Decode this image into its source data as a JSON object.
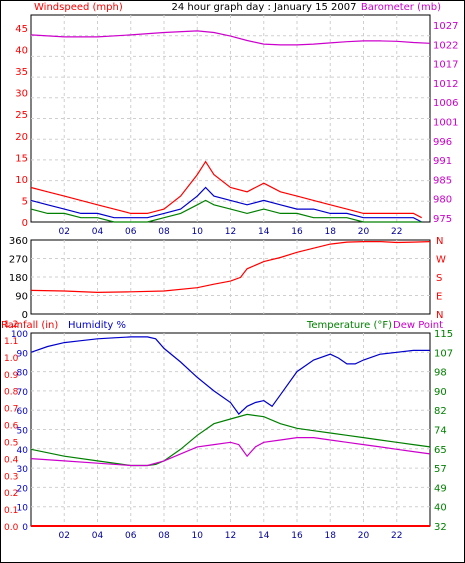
{
  "title": "24 hour graph day : January 15 2007",
  "colors": {
    "frame": "#000000",
    "grid": "#cfcfcf",
    "wind_gust": "#ff0000",
    "wind_avg": "#0000cc",
    "wind_low": "#008000",
    "barometer": "#cc00cc",
    "direction": "#ff0000",
    "humidity": "#0000cc",
    "temperature": "#008000",
    "dew_point": "#cc00cc",
    "rainfall": "#ff0000",
    "x_ticks": "#000099"
  },
  "x_ticks": [
    "02",
    "04",
    "06",
    "08",
    "10",
    "12",
    "14",
    "16",
    "18",
    "20",
    "22"
  ],
  "chart_data": [
    {
      "type": "line",
      "labels": {
        "left": "Windspeed (mph)",
        "right": "Barometer (mb)"
      },
      "x_range": [
        0,
        24
      ],
      "y_left_ticks": [
        "0",
        "5",
        "10",
        "15",
        "20",
        "25",
        "30",
        "35",
        "40",
        "45"
      ],
      "y_left_range": [
        0,
        48
      ],
      "y_right_ticks": [
        "975",
        "980",
        "985",
        "991",
        "996",
        "1001",
        "1006",
        "1012",
        "1017",
        "1022",
        "1027"
      ],
      "y_right_range": [
        975,
        1027
      ],
      "series": [
        {
          "key": "wind_gust",
          "axis": "left",
          "x": [
            0,
            1,
            2,
            3,
            4,
            5,
            6,
            7,
            8,
            9,
            10,
            10.5,
            11,
            12,
            13,
            14,
            15,
            16,
            17,
            18,
            19,
            20,
            21,
            22,
            23,
            23.5
          ],
          "y": [
            8,
            7,
            6,
            5,
            4,
            3,
            2,
            2,
            3,
            6,
            11,
            14,
            11,
            8,
            7,
            9,
            7,
            6,
            5,
            4,
            3,
            2,
            2,
            2,
            2,
            1
          ]
        },
        {
          "key": "wind_avg",
          "axis": "left",
          "x": [
            0,
            1,
            2,
            3,
            4,
            5,
            6,
            7,
            8,
            9,
            10,
            10.5,
            11,
            12,
            13,
            14,
            15,
            16,
            17,
            18,
            19,
            20,
            21,
            22,
            23,
            23.5
          ],
          "y": [
            5,
            4,
            3,
            2,
            2,
            1,
            1,
            1,
            2,
            3,
            6,
            8,
            6,
            5,
            4,
            5,
            4,
            3,
            3,
            2,
            2,
            1,
            1,
            1,
            1,
            0
          ]
        },
        {
          "key": "wind_low",
          "axis": "left",
          "x": [
            0,
            1,
            2,
            3,
            4,
            5,
            6,
            7,
            8,
            9,
            10,
            10.5,
            11,
            12,
            13,
            14,
            15,
            16,
            17,
            18,
            19,
            20,
            21,
            22,
            23,
            23.5
          ],
          "y": [
            3,
            2,
            2,
            1,
            1,
            0,
            0,
            0,
            1,
            2,
            4,
            5,
            4,
            3,
            2,
            3,
            2,
            2,
            1,
            1,
            1,
            0,
            0,
            0,
            0,
            0
          ]
        },
        {
          "key": "barometer",
          "axis": "right",
          "x": [
            0,
            2,
            4,
            6,
            8,
            10,
            11,
            12,
            13,
            14,
            15,
            16,
            17,
            18,
            19,
            20,
            21,
            22,
            23,
            24
          ],
          "y": [
            1022,
            1021.5,
            1021.5,
            1022,
            1022.6,
            1023,
            1022.6,
            1021.7,
            1020.6,
            1019.7,
            1019.5,
            1019.5,
            1019.7,
            1020,
            1020.3,
            1020.5,
            1020.5,
            1020.4,
            1020.1,
            1019.9
          ]
        }
      ]
    },
    {
      "type": "line",
      "labels": {
        "right": [
          "N",
          "W",
          "S",
          "E",
          "N"
        ]
      },
      "x_range": [
        0,
        24
      ],
      "y_left_ticks": [
        "0",
        "90",
        "180",
        "270",
        "360"
      ],
      "y_range": [
        0,
        360
      ],
      "series": [
        {
          "key": "direction",
          "x": [
            0,
            2,
            4,
            6,
            8,
            10,
            11,
            12,
            12.6,
            13,
            14,
            15,
            16,
            17,
            18,
            19,
            20,
            21,
            22,
            23,
            24
          ],
          "y": [
            115,
            112,
            105,
            108,
            112,
            128,
            145,
            160,
            178,
            220,
            255,
            275,
            300,
            320,
            340,
            350,
            352,
            352,
            348,
            350,
            352
          ]
        }
      ]
    },
    {
      "type": "line",
      "labels": {
        "left1": "Rainfall (in)",
        "left2": "Humidity %",
        "right1": "Temperature (°F)",
        "right2": "Dew Point"
      },
      "x_range": [
        0,
        24
      ],
      "y_rain_ticks": [
        "0.0",
        "0.1",
        "0.2",
        "0.3",
        "0.4",
        "0.5",
        "0.6",
        "0.7",
        "0.8",
        "0.9",
        "1.0",
        "1.1",
        "1.2"
      ],
      "y_humidity_ticks": [
        "0",
        "10",
        "20",
        "30",
        "40",
        "50",
        "60",
        "70",
        "80",
        "90",
        "100"
      ],
      "y_humidity_range": [
        0,
        100
      ],
      "y_temp_ticks": [
        "32",
        "40",
        "49",
        "57",
        "65",
        "74",
        "82",
        "90",
        "98",
        "107",
        "115"
      ],
      "y_temp_range": [
        32,
        115
      ],
      "series": [
        {
          "key": "humidity",
          "axis": "humidity",
          "x": [
            0,
            1,
            2,
            3,
            4,
            5,
            6,
            7,
            7.5,
            8,
            9,
            10,
            11,
            12,
            12.5,
            13,
            13.5,
            14,
            14.5,
            15,
            16,
            17,
            18,
            18.5,
            19,
            19.5,
            20,
            21,
            22,
            23,
            24
          ],
          "y": [
            90,
            93,
            95,
            96,
            97,
            97.5,
            98,
            98,
            97,
            92,
            85,
            77,
            70,
            64,
            58,
            62,
            64,
            65,
            62,
            68,
            80,
            86,
            89,
            87,
            84,
            84,
            86,
            89,
            90,
            91,
            91
          ]
        },
        {
          "key": "temperature",
          "axis": "temp",
          "x": [
            0,
            2,
            4,
            6,
            7,
            7.5,
            8,
            9,
            10,
            11,
            12,
            13,
            14,
            15,
            16,
            17,
            18,
            19,
            20,
            21,
            22,
            23,
            24
          ],
          "y": [
            65,
            62,
            60,
            58,
            58,
            58.5,
            60,
            65,
            71,
            76,
            78,
            80,
            79,
            76,
            74,
            73,
            72,
            71,
            70,
            69,
            68,
            67,
            66
          ]
        },
        {
          "key": "dew_point",
          "axis": "temp",
          "x": [
            0,
            2,
            4,
            6,
            7,
            8,
            9,
            10,
            11,
            12,
            12.5,
            13,
            13.5,
            14,
            15,
            16,
            17,
            18,
            19,
            20,
            21,
            22,
            23,
            24
          ],
          "y": [
            61,
            60,
            59,
            58,
            58,
            60,
            63,
            66,
            67,
            68,
            67,
            62,
            66,
            68,
            69,
            70,
            70,
            69,
            68,
            67,
            66,
            65,
            64,
            63
          ]
        },
        {
          "key": "rainfall",
          "axis": "rain",
          "x": [
            0,
            24
          ],
          "y": [
            0,
            0
          ]
        }
      ]
    }
  ]
}
